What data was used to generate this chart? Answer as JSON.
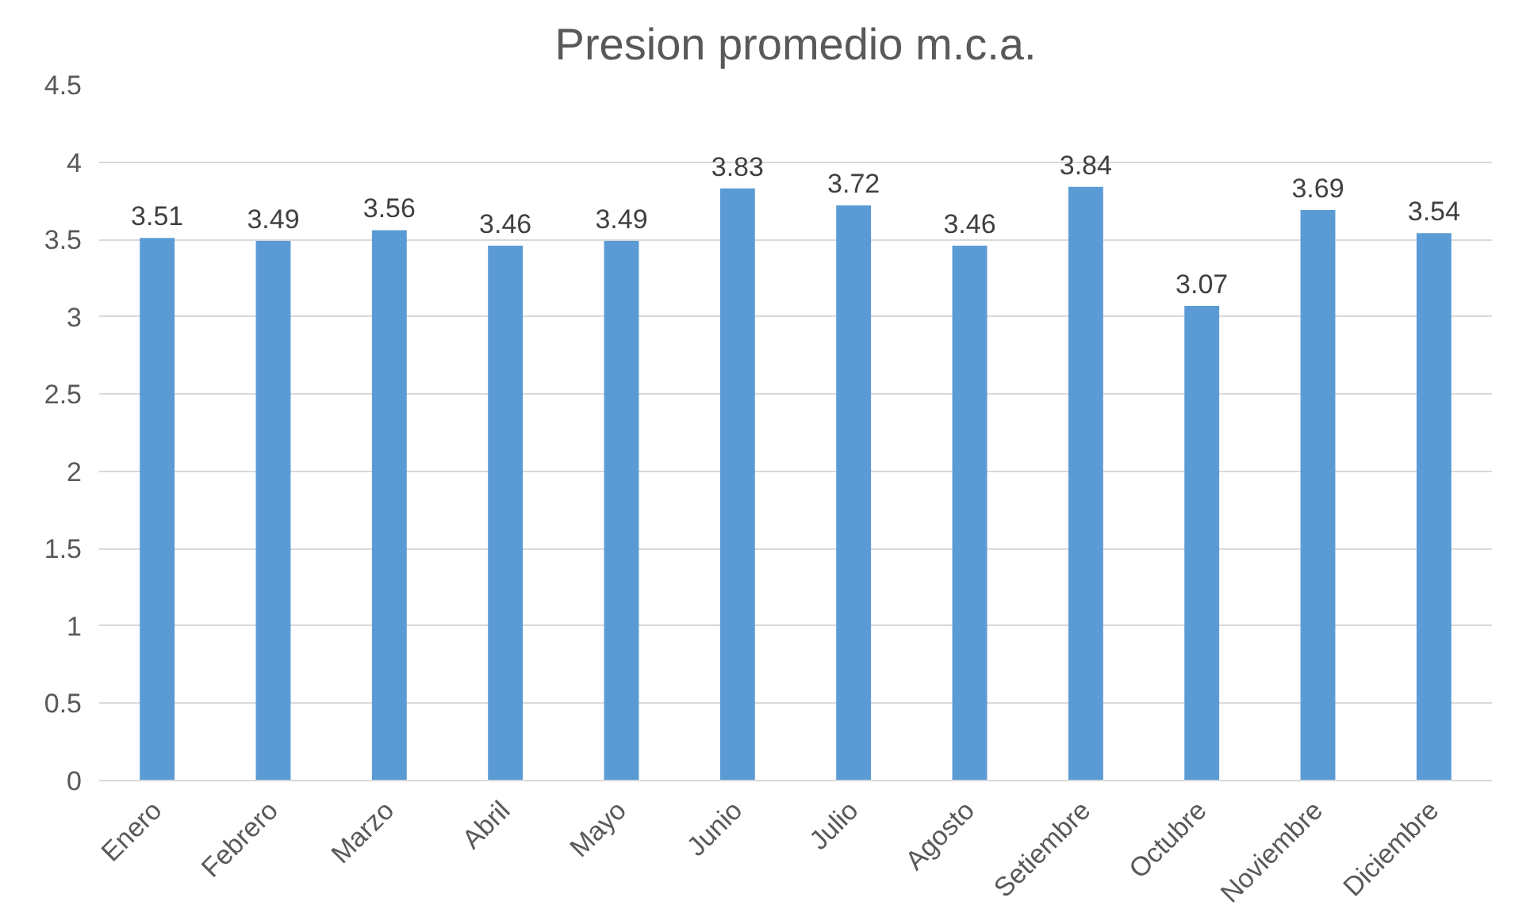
{
  "chart_data": {
    "type": "bar",
    "title": "Presion promedio m.c.a.",
    "categories": [
      "Enero",
      "Febrero",
      "Marzo",
      "Abril",
      "Mayo",
      "Junio",
      "Julio",
      "Agosto",
      "Setiembre",
      "Octubre",
      "Noviembre",
      "Diciembre"
    ],
    "values": [
      3.51,
      3.49,
      3.56,
      3.46,
      3.49,
      3.83,
      3.72,
      3.46,
      3.84,
      3.07,
      3.69,
      3.54
    ],
    "color": "#5b9bd5",
    "ylim": [
      0,
      4.5
    ],
    "yticks": [
      0,
      0.5,
      1,
      1.5,
      2,
      2.5,
      3,
      3.5,
      4,
      4.5
    ],
    "grid": "y",
    "data_labels": true
  }
}
